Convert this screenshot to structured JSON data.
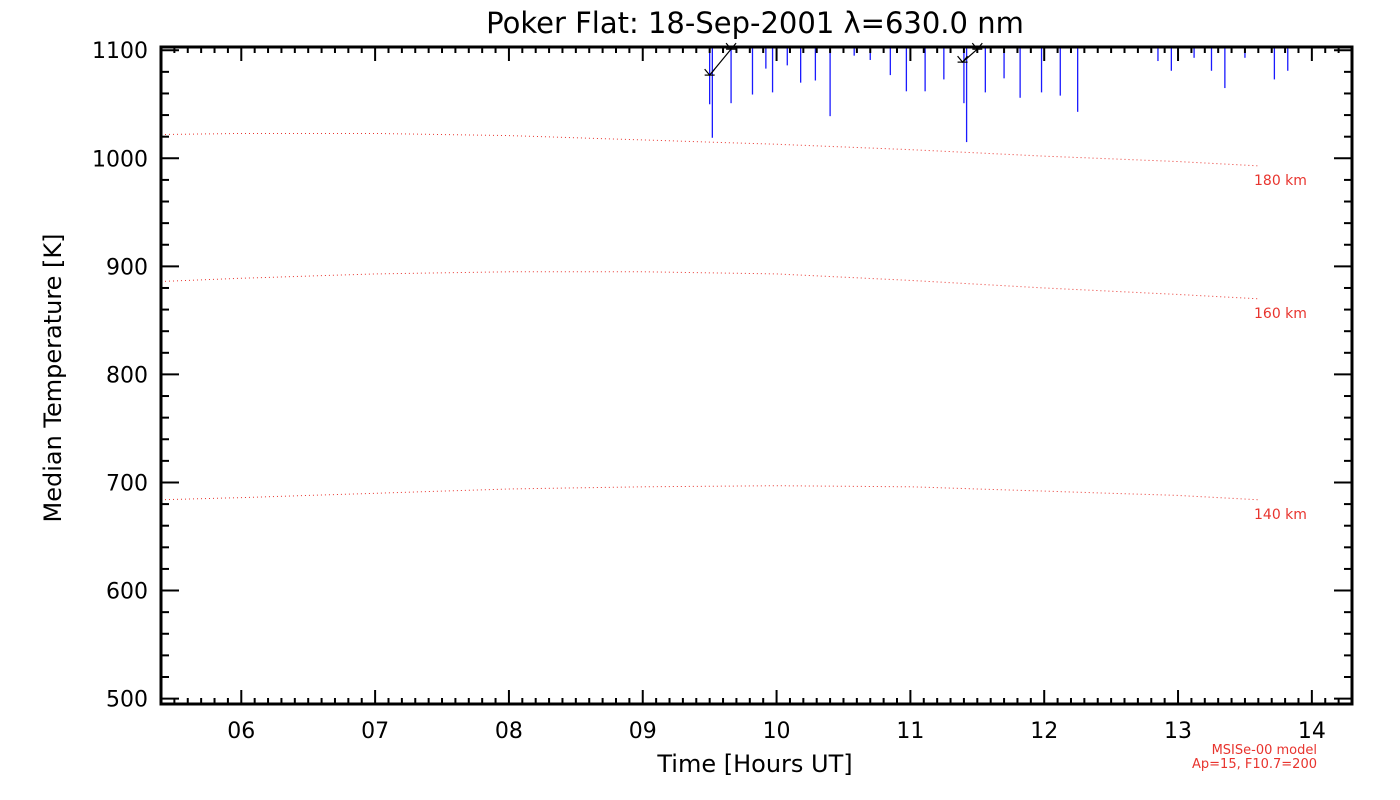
{
  "chart_data": {
    "type": "line",
    "title": "Poker Flat: 18-Sep-2001 λ=630.0 nm",
    "xlabel": "Time [Hours UT]",
    "ylabel": "Median Temperature [K]",
    "xlim": [
      5.4,
      14.3
    ],
    "ylim": [
      495,
      1103
    ],
    "xticks": [
      {
        "value": 6,
        "label": "06"
      },
      {
        "value": 7,
        "label": "07"
      },
      {
        "value": 8,
        "label": "08"
      },
      {
        "value": 9,
        "label": "09"
      },
      {
        "value": 10,
        "label": "10"
      },
      {
        "value": 11,
        "label": "11"
      },
      {
        "value": 12,
        "label": "12"
      },
      {
        "value": 13,
        "label": "13"
      },
      {
        "value": 14,
        "label": "14"
      }
    ],
    "yticks": [
      {
        "value": 500,
        "label": "500"
      },
      {
        "value": 600,
        "label": "600"
      },
      {
        "value": 700,
        "label": "700"
      },
      {
        "value": 800,
        "label": "800"
      },
      {
        "value": 900,
        "label": "900"
      },
      {
        "value": 1000,
        "label": "1000"
      },
      {
        "value": 1100,
        "label": "1100"
      }
    ],
    "model_series": [
      {
        "name": "180 km",
        "color": "#e8342e",
        "x": [
          5.4,
          6.0,
          7.0,
          8.0,
          9.0,
          10.0,
          11.0,
          12.0,
          13.0,
          13.6
        ],
        "y": [
          1022,
          1023,
          1023,
          1021,
          1017,
          1013,
          1008,
          1002,
          997,
          993
        ]
      },
      {
        "name": "160 km",
        "color": "#e8342e",
        "x": [
          5.4,
          6.0,
          7.0,
          8.0,
          9.0,
          10.0,
          11.0,
          12.0,
          13.0,
          13.6
        ],
        "y": [
          886,
          889,
          893,
          895,
          895,
          893,
          887,
          880,
          874,
          870
        ]
      },
      {
        "name": "140 km",
        "color": "#e8342e",
        "x": [
          5.4,
          6.0,
          7.0,
          8.0,
          9.0,
          10.0,
          11.0,
          12.0,
          13.0,
          13.6
        ],
        "y": [
          684,
          686,
          690,
          694,
          696,
          697,
          696,
          692,
          688,
          684
        ]
      }
    ],
    "measurements": {
      "name": "Median temperature",
      "color": "#1a1aff",
      "errorbars": [
        {
          "x": 9.5,
          "low": 1050
        },
        {
          "x": 9.52,
          "low": 1019
        },
        {
          "x": 9.66,
          "low": 1051
        },
        {
          "x": 9.82,
          "low": 1059
        },
        {
          "x": 9.92,
          "low": 1083
        },
        {
          "x": 9.97,
          "low": 1061
        },
        {
          "x": 10.08,
          "low": 1086
        },
        {
          "x": 10.18,
          "low": 1070
        },
        {
          "x": 10.29,
          "low": 1072
        },
        {
          "x": 10.4,
          "low": 1039
        },
        {
          "x": 10.58,
          "low": 1095
        },
        {
          "x": 10.7,
          "low": 1091
        },
        {
          "x": 10.85,
          "low": 1077
        },
        {
          "x": 10.97,
          "low": 1062
        },
        {
          "x": 11.11,
          "low": 1062
        },
        {
          "x": 11.25,
          "low": 1073
        },
        {
          "x": 11.4,
          "low": 1051
        },
        {
          "x": 11.42,
          "low": 1015
        },
        {
          "x": 11.56,
          "low": 1061
        },
        {
          "x": 11.7,
          "low": 1074
        },
        {
          "x": 11.82,
          "low": 1056
        },
        {
          "x": 11.98,
          "low": 1061
        },
        {
          "x": 12.12,
          "low": 1058
        },
        {
          "x": 12.25,
          "low": 1043
        },
        {
          "x": 12.85,
          "low": 1090
        },
        {
          "x": 12.95,
          "low": 1081
        },
        {
          "x": 13.12,
          "low": 1093
        },
        {
          "x": 13.25,
          "low": 1081
        },
        {
          "x": 13.35,
          "low": 1065
        },
        {
          "x": 13.5,
          "low": 1093
        },
        {
          "x": 13.72,
          "low": 1073
        },
        {
          "x": 13.82,
          "low": 1081
        }
      ],
      "points": [
        {
          "x": 9.5,
          "y": 1077
        },
        {
          "x": 9.66,
          "y": 1101
        },
        {
          "x": 11.39,
          "y": 1089
        },
        {
          "x": 11.5,
          "y": 1101
        }
      ]
    },
    "model_note": [
      "MSISe-00 model",
      "Ap=15, F10.7=200"
    ]
  }
}
